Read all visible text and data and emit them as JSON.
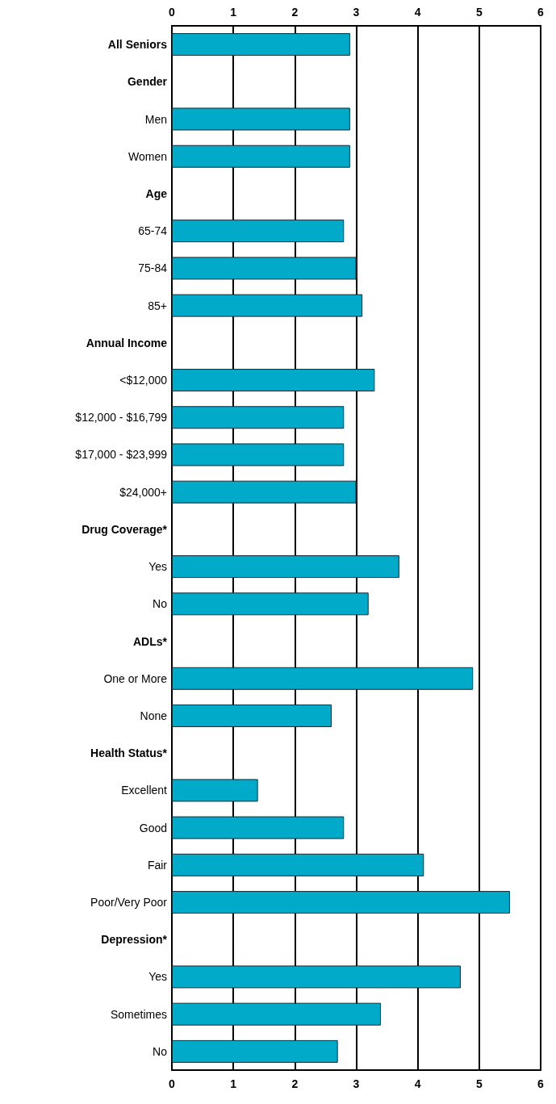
{
  "chart_data": {
    "type": "bar",
    "orientation": "horizontal",
    "categories": [
      "All Seniors",
      "Gender",
      "Men",
      "Women",
      "Age",
      "65-74",
      "75-84",
      "85+",
      "Annual Income",
      "<$12,000",
      "$12,000 - $16,799",
      "$17,000 - $23,999",
      "$24,000+",
      "Drug Coverage*",
      "Yes",
      "No",
      "ADLs*",
      "One or More",
      "None",
      "Health Status*",
      "Excellent",
      "Good",
      "Fair",
      "Poor/Very Poor",
      "Depression*",
      "Yes",
      "Sometimes",
      "No"
    ],
    "values": [
      2.9,
      null,
      2.9,
      2.9,
      null,
      2.8,
      3.0,
      3.1,
      null,
      3.3,
      2.8,
      2.8,
      3.0,
      null,
      3.7,
      3.2,
      null,
      4.9,
      2.6,
      null,
      1.4,
      2.8,
      4.1,
      5.5,
      null,
      4.7,
      3.4,
      2.7
    ],
    "color": "#00aac8",
    "xlim": [
      0,
      6
    ],
    "xticks": [
      0,
      1,
      2,
      3,
      4,
      5,
      6
    ],
    "x2lim": [
      0,
      6
    ],
    "x2ticks": [
      0,
      1,
      2,
      3,
      4,
      5,
      6
    ],
    "grid": "x"
  }
}
